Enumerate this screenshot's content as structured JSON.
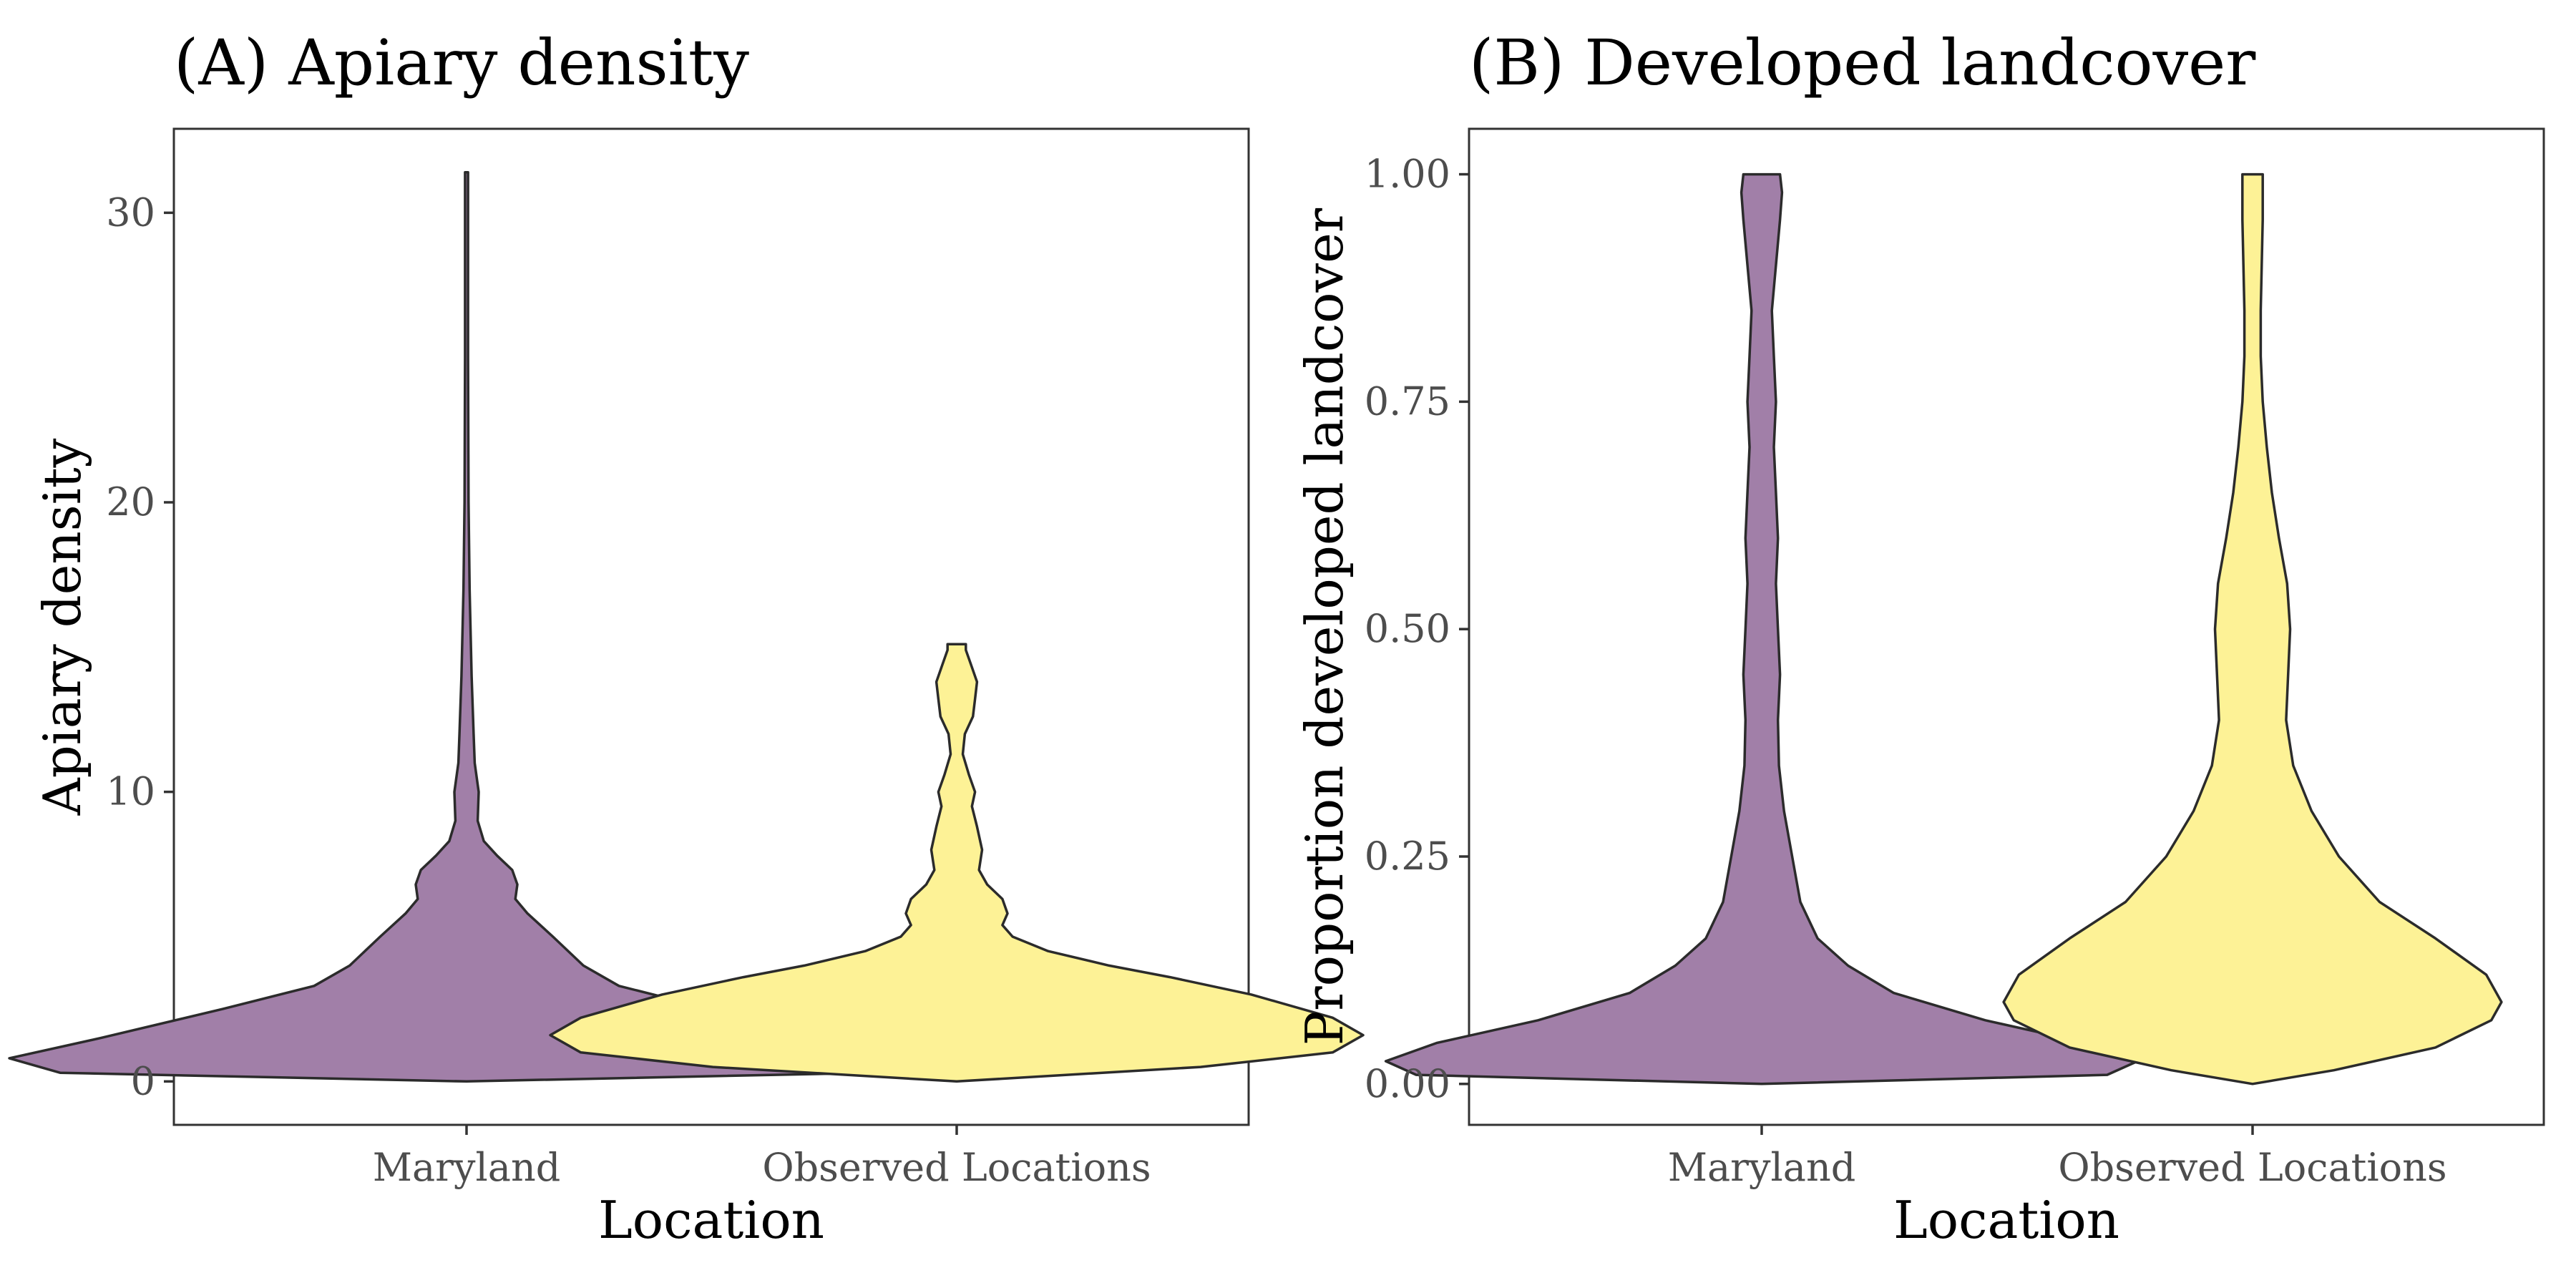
{
  "chart_data": [
    {
      "type": "violin",
      "title": "(A) Apiary density",
      "xlabel": "Location",
      "ylabel": "Apiary density",
      "categories": [
        "Maryland",
        "Observed Locations"
      ],
      "y_ticks": [
        "0",
        "10",
        "20",
        "30"
      ],
      "ylim": [
        -1.5,
        32.9
      ],
      "grid": false,
      "series": [
        {
          "color": "#a17fa8",
          "range": [
            0,
            31.4
          ],
          "density": [
            {
              "y": 0,
              "w": 0.0
            },
            {
              "y": 0.3,
              "w": 0.4
            },
            {
              "y": 0.8,
              "w": 0.45
            },
            {
              "y": 1.5,
              "w": 0.36
            },
            {
              "y": 2.5,
              "w": 0.24
            },
            {
              "y": 3.3,
              "w": 0.15
            },
            {
              "y": 4.0,
              "w": 0.115
            },
            {
              "y": 5.0,
              "w": 0.085
            },
            {
              "y": 5.8,
              "w": 0.06
            },
            {
              "y": 6.3,
              "w": 0.048
            },
            {
              "y": 6.8,
              "w": 0.05
            },
            {
              "y": 7.3,
              "w": 0.045
            },
            {
              "y": 7.8,
              "w": 0.03
            },
            {
              "y": 8.3,
              "w": 0.017
            },
            {
              "y": 9.0,
              "w": 0.011
            },
            {
              "y": 10.0,
              "w": 0.012
            },
            {
              "y": 11.0,
              "w": 0.008
            },
            {
              "y": 12.0,
              "w": 0.007
            },
            {
              "y": 14.0,
              "w": 0.005
            },
            {
              "y": 17.0,
              "w": 0.003
            },
            {
              "y": 20.0,
              "w": 0.002
            },
            {
              "y": 25.0,
              "w": 0.0015
            },
            {
              "y": 31.4,
              "w": 0.0015
            }
          ]
        },
        {
          "color": "#fdf296",
          "range": [
            0,
            15.1
          ],
          "density": [
            {
              "y": 0,
              "w": 0.0
            },
            {
              "y": 0.5,
              "w": 0.24
            },
            {
              "y": 1.0,
              "w": 0.37
            },
            {
              "y": 1.6,
              "w": 0.4
            },
            {
              "y": 2.2,
              "w": 0.37
            },
            {
              "y": 3.0,
              "w": 0.29
            },
            {
              "y": 3.6,
              "w": 0.21
            },
            {
              "y": 4.0,
              "w": 0.15
            },
            {
              "y": 4.5,
              "w": 0.09
            },
            {
              "y": 5.0,
              "w": 0.055
            },
            {
              "y": 5.4,
              "w": 0.045
            },
            {
              "y": 5.8,
              "w": 0.05
            },
            {
              "y": 6.3,
              "w": 0.045
            },
            {
              "y": 6.8,
              "w": 0.03
            },
            {
              "y": 7.3,
              "w": 0.022
            },
            {
              "y": 8.0,
              "w": 0.025
            },
            {
              "y": 8.8,
              "w": 0.02
            },
            {
              "y": 9.5,
              "w": 0.015
            },
            {
              "y": 10.0,
              "w": 0.018
            },
            {
              "y": 10.6,
              "w": 0.012
            },
            {
              "y": 11.3,
              "w": 0.006
            },
            {
              "y": 12.0,
              "w": 0.008
            },
            {
              "y": 12.6,
              "w": 0.016
            },
            {
              "y": 13.2,
              "w": 0.018
            },
            {
              "y": 13.8,
              "w": 0.02
            },
            {
              "y": 14.4,
              "w": 0.014
            },
            {
              "y": 14.9,
              "w": 0.009
            },
            {
              "y": 15.1,
              "w": 0.009
            }
          ]
        }
      ]
    },
    {
      "type": "violin",
      "title": "(B) Developed landcover",
      "xlabel": "Location",
      "ylabel": "Proportion developed landcover",
      "categories": [
        "Maryland",
        "Observed Locations"
      ],
      "y_ticks": [
        "0.00",
        "0.25",
        "0.50",
        "0.75",
        "1.00"
      ],
      "ylim": [
        -0.045,
        1.05
      ],
      "grid": false,
      "series": [
        {
          "color": "#a17fa8",
          "range": [
            0,
            1
          ],
          "density": [
            {
              "y": 0,
              "w": 0.0
            },
            {
              "y": 0.01,
              "w": 0.34
            },
            {
              "y": 0.025,
              "w": 0.37
            },
            {
              "y": 0.045,
              "w": 0.32
            },
            {
              "y": 0.07,
              "w": 0.22
            },
            {
              "y": 0.1,
              "w": 0.13
            },
            {
              "y": 0.13,
              "w": 0.085
            },
            {
              "y": 0.16,
              "w": 0.055
            },
            {
              "y": 0.2,
              "w": 0.038
            },
            {
              "y": 0.25,
              "w": 0.03
            },
            {
              "y": 0.3,
              "w": 0.022
            },
            {
              "y": 0.35,
              "w": 0.017
            },
            {
              "y": 0.4,
              "w": 0.016
            },
            {
              "y": 0.45,
              "w": 0.018
            },
            {
              "y": 0.5,
              "w": 0.016
            },
            {
              "y": 0.55,
              "w": 0.014
            },
            {
              "y": 0.6,
              "w": 0.016
            },
            {
              "y": 0.65,
              "w": 0.014
            },
            {
              "y": 0.7,
              "w": 0.012
            },
            {
              "y": 0.75,
              "w": 0.014
            },
            {
              "y": 0.8,
              "w": 0.012
            },
            {
              "y": 0.85,
              "w": 0.01
            },
            {
              "y": 0.9,
              "w": 0.014
            },
            {
              "y": 0.95,
              "w": 0.018
            },
            {
              "y": 0.98,
              "w": 0.02
            },
            {
              "y": 1.0,
              "w": 0.018
            }
          ]
        },
        {
          "color": "#fdf296",
          "range": [
            0,
            1
          ],
          "density": [
            {
              "y": 0,
              "w": 0.0
            },
            {
              "y": 0.015,
              "w": 0.08
            },
            {
              "y": 0.04,
              "w": 0.18
            },
            {
              "y": 0.07,
              "w": 0.235
            },
            {
              "y": 0.09,
              "w": 0.245
            },
            {
              "y": 0.12,
              "w": 0.23
            },
            {
              "y": 0.16,
              "w": 0.18
            },
            {
              "y": 0.2,
              "w": 0.125
            },
            {
              "y": 0.25,
              "w": 0.085
            },
            {
              "y": 0.3,
              "w": 0.058
            },
            {
              "y": 0.35,
              "w": 0.04
            },
            {
              "y": 0.4,
              "w": 0.033
            },
            {
              "y": 0.45,
              "w": 0.035
            },
            {
              "y": 0.5,
              "w": 0.037
            },
            {
              "y": 0.55,
              "w": 0.034
            },
            {
              "y": 0.6,
              "w": 0.026
            },
            {
              "y": 0.65,
              "w": 0.019
            },
            {
              "y": 0.7,
              "w": 0.014
            },
            {
              "y": 0.75,
              "w": 0.01
            },
            {
              "y": 0.8,
              "w": 0.008
            },
            {
              "y": 0.85,
              "w": 0.008
            },
            {
              "y": 0.9,
              "w": 0.009
            },
            {
              "y": 0.95,
              "w": 0.01
            },
            {
              "y": 1.0,
              "w": 0.01
            }
          ]
        }
      ]
    }
  ]
}
